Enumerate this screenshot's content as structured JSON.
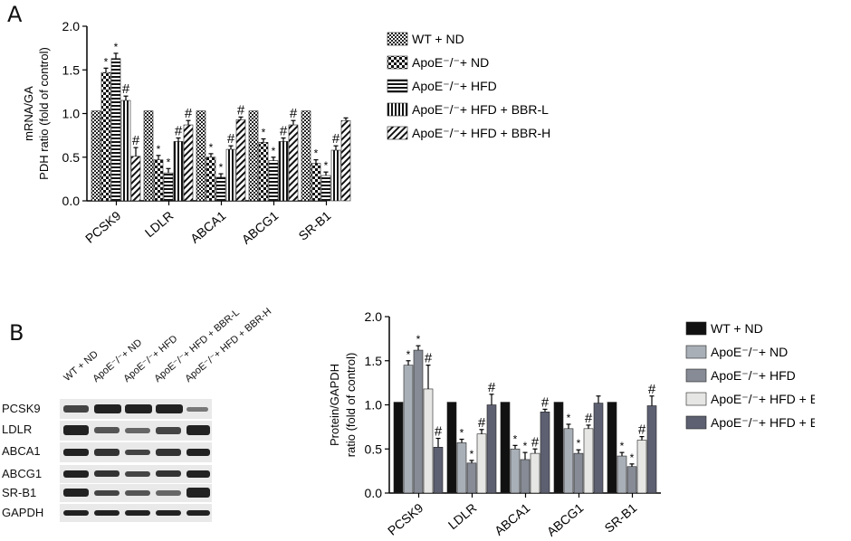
{
  "panel_labels": {
    "a": "A",
    "b": "B"
  },
  "legend_a": [
    {
      "label": "WT + ND",
      "pattern": "checker"
    },
    {
      "label": "ApoE⁻/⁻+ ND",
      "pattern": "bigchecker"
    },
    {
      "label": "ApoE⁻/⁻+ HFD",
      "pattern": "hlines"
    },
    {
      "label": "ApoE⁻/⁻+ HFD + BBR-L",
      "pattern": "vlines"
    },
    {
      "label": "ApoE⁻/⁻+ HFD + BBR-H",
      "pattern": "diag"
    }
  ],
  "legend_b": [
    {
      "label": "WT + ND",
      "color": "#111111"
    },
    {
      "label": "ApoE⁻/⁻+ ND",
      "color": "#a9afb6"
    },
    {
      "label": "ApoE⁻/⁻+ HFD",
      "color": "#868b95"
    },
    {
      "label": "ApoE⁻/⁻+ HFD + BBR-L",
      "color": "#e6e6e4"
    },
    {
      "label": "ApoE⁻/⁻+ HFD + BBR-H",
      "color": "#5d6071"
    }
  ],
  "blot": {
    "lanes": [
      "WT + ND",
      "ApoE⁻/⁻+ ND",
      "ApoE⁻/⁻+ HFD",
      "ApoE⁻/⁻+ HFD + BBR-L",
      "ApoE⁻/⁻+ HFD + BBR-H"
    ],
    "bands": [
      "PCSK9",
      "LDLR",
      "ABCA1",
      "ABCG1",
      "SR-B1",
      "GAPDH"
    ]
  },
  "chart_data": [
    {
      "type": "bar",
      "ylabel": "mRNA/GA PDH ratio (fold of control)",
      "ylim": [
        0,
        2.0
      ],
      "yticks": [
        "0.0",
        "0.5",
        "1.0",
        "1.5",
        "2.0"
      ],
      "categories": [
        "PCSK9",
        "LDLR",
        "ABCA1",
        "ABCG1",
        "SR-B1"
      ],
      "series": [
        {
          "name": "WT + ND",
          "values": [
            1.03,
            1.03,
            1.03,
            1.03,
            1.03
          ],
          "errors": [
            0,
            0,
            0,
            0,
            0
          ],
          "marks": [
            "",
            "",
            "",
            "",
            ""
          ]
        },
        {
          "name": "ApoE⁻/⁻+ ND",
          "values": [
            1.47,
            0.47,
            0.5,
            0.67,
            0.43
          ],
          "errors": [
            0.05,
            0.05,
            0.04,
            0.04,
            0.04
          ],
          "marks": [
            "*",
            "*",
            "*",
            "*",
            "*"
          ]
        },
        {
          "name": "ApoE⁻/⁻+ HFD",
          "values": [
            1.63,
            0.32,
            0.27,
            0.46,
            0.29
          ],
          "errors": [
            0.06,
            0.05,
            0.04,
            0.04,
            0.04
          ],
          "marks": [
            "*",
            "*",
            "*",
            "*",
            "*"
          ]
        },
        {
          "name": "ApoE⁻/⁻+ HFD + BBR-L",
          "values": [
            1.15,
            0.68,
            0.59,
            0.68,
            0.58
          ],
          "errors": [
            0.05,
            0.04,
            0.04,
            0.04,
            0.05
          ],
          "marks": [
            "#",
            "#",
            "#",
            "#",
            "#"
          ]
        },
        {
          "name": "ApoE⁻/⁻+ HFD + BBR-H",
          "values": [
            0.51,
            0.87,
            0.93,
            0.87,
            0.92
          ],
          "errors": [
            0.1,
            0.05,
            0.03,
            0.05,
            0.03
          ],
          "marks": [
            "#",
            "#",
            "#",
            "#",
            ""
          ]
        }
      ]
    },
    {
      "type": "bar",
      "ylabel": "Protein/GAPDH ratio (fold of control)",
      "ylim": [
        0,
        2.0
      ],
      "yticks": [
        "0.0",
        "0.5",
        "1.0",
        "1.5",
        "2.0"
      ],
      "categories": [
        "PCSK9",
        "LDLR",
        "ABCA1",
        "ABCG1",
        "SR-B1"
      ],
      "series": [
        {
          "name": "WT + ND",
          "values": [
            1.03,
            1.03,
            1.03,
            1.03,
            1.03
          ],
          "errors": [
            0,
            0,
            0,
            0,
            0
          ],
          "marks": [
            "",
            "",
            "",
            "",
            ""
          ]
        },
        {
          "name": "ApoE⁻/⁻+ ND",
          "values": [
            1.45,
            0.57,
            0.5,
            0.73,
            0.42
          ],
          "errors": [
            0.05,
            0.04,
            0.04,
            0.05,
            0.04
          ],
          "marks": [
            "*",
            "*",
            "*",
            "*",
            "*"
          ]
        },
        {
          "name": "ApoE⁻/⁻+ HFD",
          "values": [
            1.62,
            0.34,
            0.38,
            0.45,
            0.3
          ],
          "errors": [
            0.05,
            0.03,
            0.08,
            0.04,
            0.03
          ],
          "marks": [
            "*",
            "*",
            "*",
            "*",
            "*"
          ]
        },
        {
          "name": "ApoE⁻/⁻+ HFD + BBR-L",
          "values": [
            1.18,
            0.67,
            0.45,
            0.73,
            0.6
          ],
          "errors": [
            0.27,
            0.05,
            0.05,
            0.04,
            0.04
          ],
          "marks": [
            "#",
            "#",
            "#",
            "#",
            "#"
          ]
        },
        {
          "name": "ApoE⁻/⁻+ HFD + BBR-H",
          "values": [
            0.52,
            1.0,
            0.92,
            1.02,
            0.99
          ],
          "errors": [
            0.1,
            0.12,
            0.03,
            0.08,
            0.11
          ],
          "marks": [
            "#",
            "#",
            "#",
            "",
            "#"
          ]
        }
      ]
    }
  ]
}
